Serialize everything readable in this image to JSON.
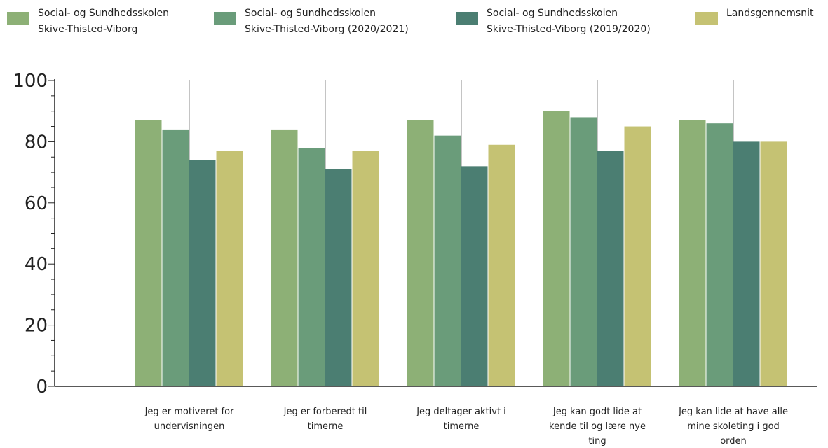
{
  "chart_data": {
    "type": "bar",
    "categories": [
      [
        "Jeg er motiveret for",
        "undervisningen"
      ],
      [
        "Jeg er forberedt til",
        "timerne"
      ],
      [
        "Jeg deltager aktivt i",
        "timerne"
      ],
      [
        "Jeg kan godt lide at",
        "kende til og lære nye",
        "ting"
      ],
      [
        "Jeg kan lide at have alle",
        "mine skoleting i god",
        "orden"
      ]
    ],
    "series": [
      {
        "name": [
          "Social- og Sundhedsskolen",
          "Skive-Thisted-Viborg"
        ],
        "color": "#8db076",
        "values": [
          87,
          84,
          87,
          90,
          87
        ]
      },
      {
        "name": [
          "Social- og Sundhedsskolen",
          "Skive-Thisted-Viborg (2020/2021)"
        ],
        "color": "#6a9c7a",
        "values": [
          84,
          78,
          82,
          88,
          86
        ]
      },
      {
        "name": [
          "Social- og Sundhedsskolen",
          "Skive-Thisted-Viborg (2019/2020)"
        ],
        "color": "#4b7e72",
        "values": [
          74,
          71,
          72,
          77,
          80
        ]
      },
      {
        "name": [
          "Landsgennemsnit"
        ],
        "color": "#c5c273",
        "values": [
          77,
          77,
          79,
          85,
          80
        ]
      }
    ],
    "ylim": [
      0,
      100
    ],
    "yticks": [
      0,
      20,
      40,
      60,
      80,
      100
    ],
    "ytick_labels": [
      "0",
      "20",
      "40",
      "60",
      "80",
      "100"
    ],
    "grid": "vertical lines between categories",
    "legend": "top"
  }
}
